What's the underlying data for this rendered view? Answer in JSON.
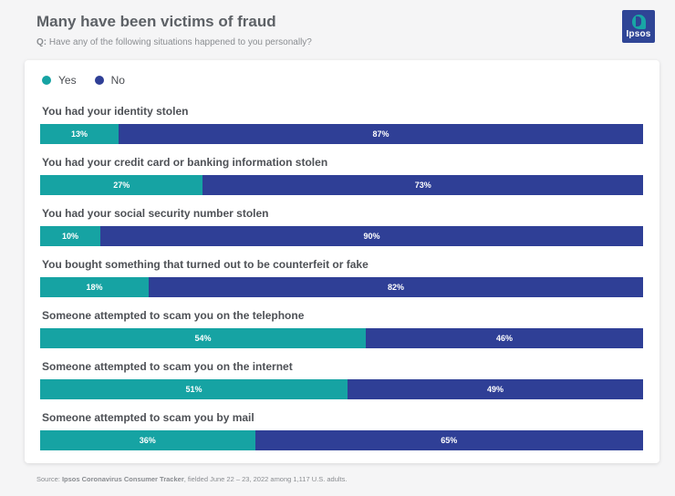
{
  "header": {
    "title": "Many have been victims of fraud",
    "question_prefix": "Q:",
    "question": "Have any of the following situations happened to you personally?"
  },
  "logo": {
    "text": "Ipsos",
    "bg_color": "#2f4596",
    "accent_color": "#19a6a5"
  },
  "colors": {
    "yes": "#16a3a3",
    "no": "#2f3f96"
  },
  "chart_data": {
    "type": "bar",
    "orientation": "horizontal",
    "stacked": true,
    "percent_stacked": true,
    "legend": [
      "Yes",
      "No"
    ],
    "legend_position": "top-left",
    "categories": [
      "You had your identity stolen",
      "You had your credit card or banking information stolen",
      "You had your social security number stolen",
      "You bought something that turned out to be counterfeit or fake",
      "Someone attempted to scam you on the telephone",
      "Someone attempted to scam you on the internet",
      "Someone attempted to scam you by mail"
    ],
    "series": [
      {
        "name": "Yes",
        "values": [
          13,
          27,
          10,
          18,
          54,
          51,
          36
        ]
      },
      {
        "name": "No",
        "values": [
          87,
          73,
          90,
          82,
          46,
          49,
          65
        ]
      }
    ],
    "value_suffix": "%"
  },
  "footer": {
    "prefix": "Source: ",
    "source_name": "Ipsos Coronavirus Consumer Tracker",
    "suffix": ", fielded June 22 – 23, 2022 among 1,117 U.S. adults."
  }
}
